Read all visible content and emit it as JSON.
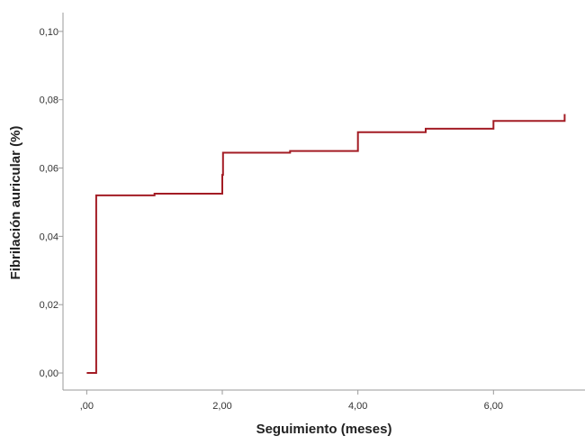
{
  "chart_data": {
    "type": "line",
    "title": "",
    "xlabel": "Seguimiento (meses)",
    "ylabel": "Fibrilación auricular (%)",
    "xlim": [
      -0.35,
      7.35
    ],
    "ylim": [
      -0.005,
      0.1055
    ],
    "x_ticks": [
      {
        "value": 0,
        "label": ",00"
      },
      {
        "value": 2,
        "label": "2,00"
      },
      {
        "value": 4,
        "label": "4,00"
      },
      {
        "value": 6,
        "label": "6,00"
      }
    ],
    "y_ticks": [
      {
        "value": 0.0,
        "label": "0,00"
      },
      {
        "value": 0.02,
        "label": "0,02"
      },
      {
        "value": 0.04,
        "label": "0,04"
      },
      {
        "value": 0.06,
        "label": "0,06"
      },
      {
        "value": 0.08,
        "label": "0,08"
      },
      {
        "value": 0.1,
        "label": "0,10"
      }
    ],
    "grid": false,
    "series": [
      {
        "color": "#a31c24",
        "step": true,
        "x": [
          0.0,
          0.13,
          0.14,
          1.0,
          2.0,
          2.01,
          3.0,
          4.0,
          5.0,
          6.0,
          7.05
        ],
        "y": [
          0.0,
          0.0,
          0.052,
          0.0525,
          0.058,
          0.0645,
          0.065,
          0.0705,
          0.0715,
          0.0738,
          0.0758
        ]
      }
    ]
  }
}
